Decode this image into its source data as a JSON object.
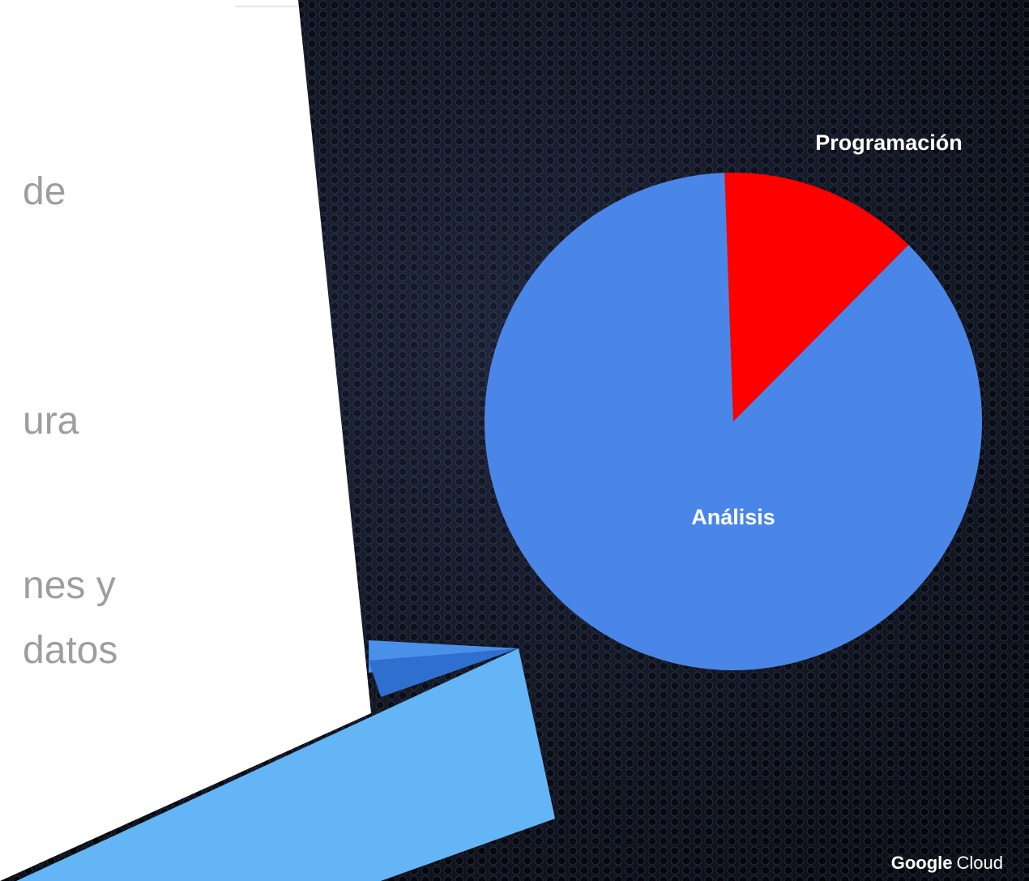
{
  "chart_data": {
    "type": "pie",
    "categories": [
      "Programación",
      "Análisis"
    ],
    "values": [
      13,
      87
    ],
    "colors": [
      "#ff0000",
      "#4a86e8"
    ]
  },
  "slide_text": [
    "de",
    "ura",
    "nes y",
    "datos"
  ],
  "footer": {
    "brand": "Google",
    "product": "Cloud"
  }
}
